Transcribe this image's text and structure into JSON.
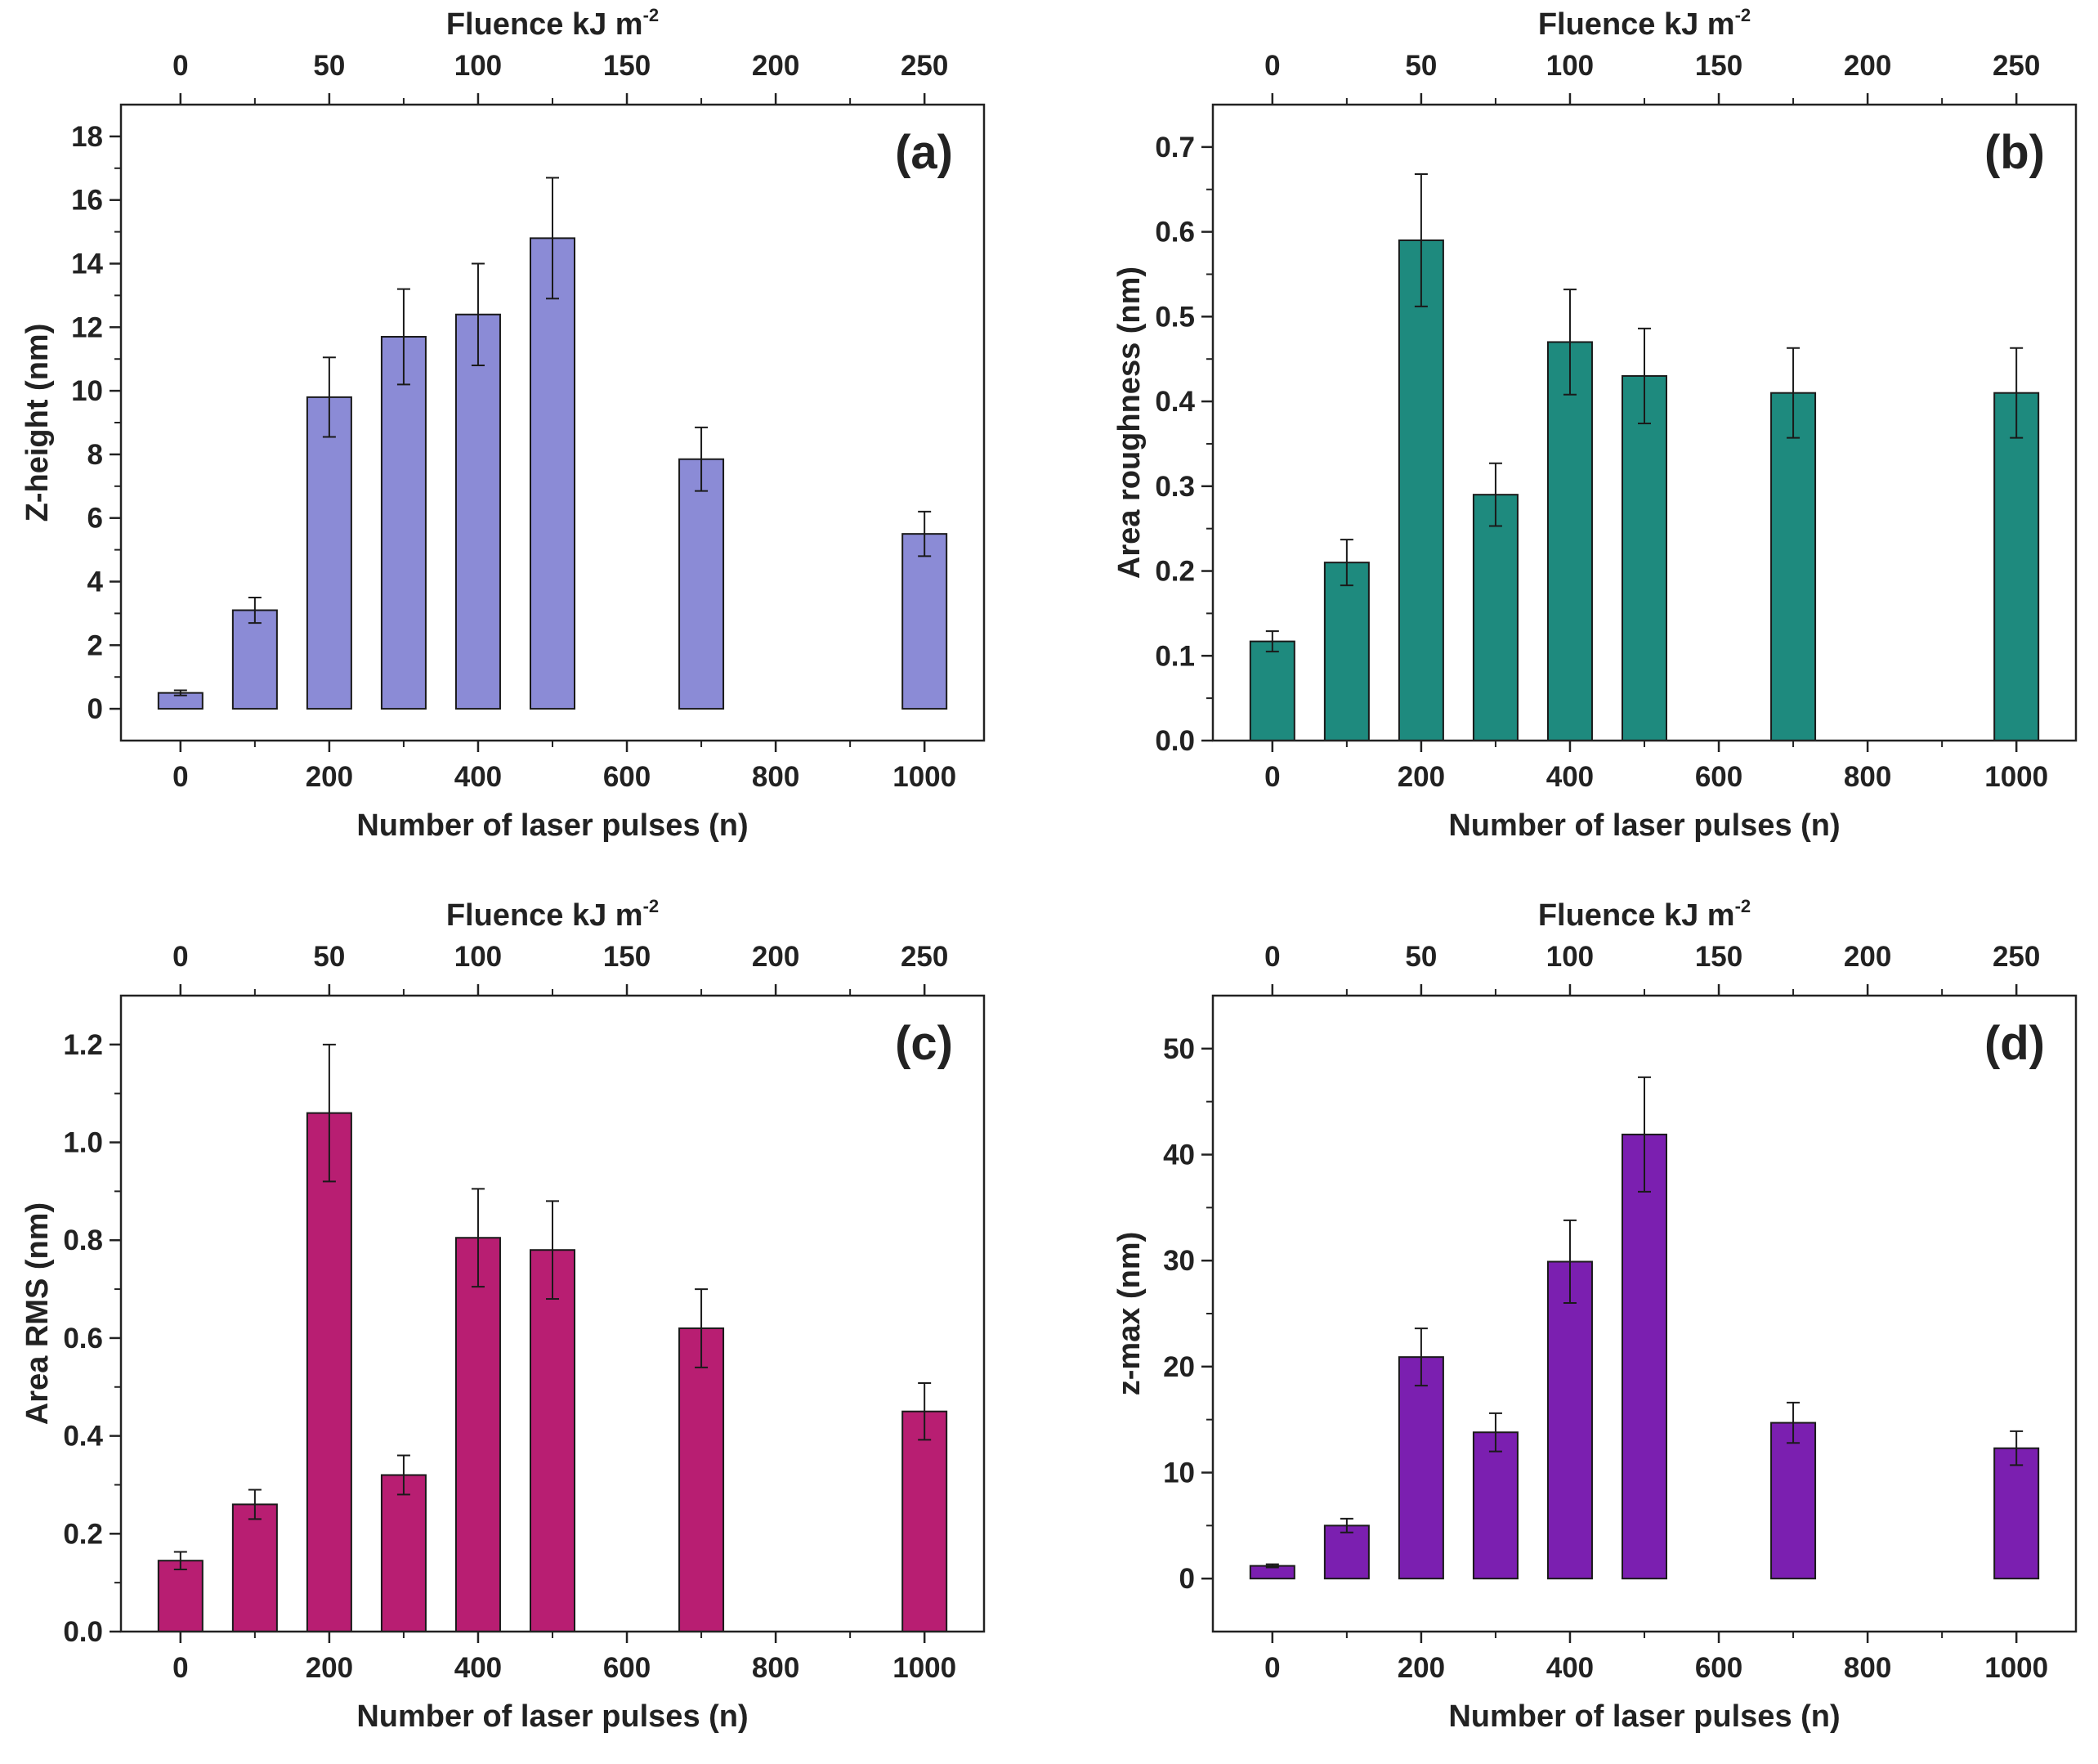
{
  "chart_data": [
    {
      "type": "bar",
      "panel": "(a)",
      "x_title": "Number of laser pulses (n)",
      "top_title": "Fluence kJ m",
      "top_title_sup": "-2",
      "ylabel": "Z-height (nm)",
      "xlim": [
        -80,
        1080
      ],
      "ylim": [
        -1,
        19
      ],
      "yticks": [
        0,
        2,
        4,
        6,
        8,
        10,
        12,
        14,
        16,
        18
      ],
      "yminor": [
        1,
        3,
        5,
        7,
        9,
        11,
        13,
        15,
        17
      ],
      "xticks": [
        0,
        200,
        400,
        600,
        800,
        1000
      ],
      "xminor": [
        100,
        300,
        500,
        700,
        900
      ],
      "top_ticks": [
        0,
        50,
        100,
        150,
        200,
        250
      ],
      "fluence_per_pulse": 0.25,
      "color": "#8b8bd6",
      "x": [
        0,
        100,
        200,
        300,
        400,
        500,
        700,
        1000
      ],
      "values": [
        0.5,
        3.1,
        9.8,
        11.7,
        12.4,
        14.8,
        7.85,
        5.5
      ],
      "errors": [
        0.08,
        0.4,
        1.25,
        1.5,
        1.6,
        1.9,
        1.0,
        0.7
      ]
    },
    {
      "type": "bar",
      "panel": "(b)",
      "x_title": "Number of laser pulses (n)",
      "top_title": "Fluence kJ m",
      "top_title_sup": "-2",
      "ylabel": "Area roughness (nm)",
      "xlim": [
        -80,
        1080
      ],
      "ylim": [
        0,
        0.75
      ],
      "yticks": [
        0.0,
        0.1,
        0.2,
        0.3,
        0.4,
        0.5,
        0.6,
        0.7
      ],
      "yminor": [
        0.05,
        0.15,
        0.25,
        0.35,
        0.45,
        0.55,
        0.65
      ],
      "xticks": [
        0,
        200,
        400,
        600,
        800,
        1000
      ],
      "xminor": [
        100,
        300,
        500,
        700,
        900
      ],
      "top_ticks": [
        0,
        50,
        100,
        150,
        200,
        250
      ],
      "fluence_per_pulse": 0.25,
      "color": "#1e8a7e",
      "x": [
        0,
        100,
        200,
        300,
        400,
        500,
        700,
        1000
      ],
      "values": [
        0.117,
        0.21,
        0.59,
        0.29,
        0.47,
        0.43,
        0.41,
        0.41
      ],
      "errors": [
        0.012,
        0.027,
        0.078,
        0.037,
        0.062,
        0.056,
        0.053,
        0.053
      ]
    },
    {
      "type": "bar",
      "panel": "(c)",
      "x_title": "Number of laser pulses (n)",
      "top_title": "Fluence kJ m",
      "top_title_sup": "-2",
      "ylabel": "Area RMS (nm)",
      "xlim": [
        -80,
        1080
      ],
      "ylim": [
        0,
        1.3
      ],
      "yticks": [
        0.0,
        0.2,
        0.4,
        0.6,
        0.8,
        1.0,
        1.2
      ],
      "yminor": [
        0.1,
        0.3,
        0.5,
        0.7,
        0.9,
        1.1
      ],
      "xticks": [
        0,
        200,
        400,
        600,
        800,
        1000
      ],
      "xminor": [
        100,
        300,
        500,
        700,
        900
      ],
      "top_ticks": [
        0,
        50,
        100,
        150,
        200,
        250
      ],
      "fluence_per_pulse": 0.25,
      "color": "#b81e72",
      "x": [
        0,
        100,
        200,
        300,
        400,
        500,
        700,
        1000
      ],
      "values": [
        0.145,
        0.26,
        1.06,
        0.32,
        0.805,
        0.78,
        0.62,
        0.45
      ],
      "errors": [
        0.018,
        0.03,
        0.14,
        0.04,
        0.1,
        0.1,
        0.08,
        0.058
      ]
    },
    {
      "type": "bar",
      "panel": "(d)",
      "x_title": "Number of laser pulses (n)",
      "top_title": "Fluence kJ m",
      "top_title_sup": "-2",
      "ylabel": "z-max (nm)",
      "xlim": [
        -80,
        1080
      ],
      "ylim": [
        -5,
        55
      ],
      "yticks": [
        0,
        10,
        20,
        30,
        40,
        50
      ],
      "yminor": [
        5,
        15,
        25,
        35,
        45
      ],
      "xticks": [
        0,
        200,
        400,
        600,
        800,
        1000
      ],
      "xminor": [
        100,
        300,
        500,
        700,
        900
      ],
      "top_ticks": [
        0,
        50,
        100,
        150,
        200,
        250
      ],
      "fluence_per_pulse": 0.25,
      "color": "#7b1fb0",
      "x": [
        0,
        100,
        200,
        300,
        400,
        500,
        700,
        1000
      ],
      "values": [
        1.2,
        5.0,
        20.9,
        13.8,
        29.9,
        41.9,
        14.7,
        12.3
      ],
      "errors": [
        0.15,
        0.65,
        2.7,
        1.8,
        3.9,
        5.4,
        1.9,
        1.6
      ]
    }
  ]
}
